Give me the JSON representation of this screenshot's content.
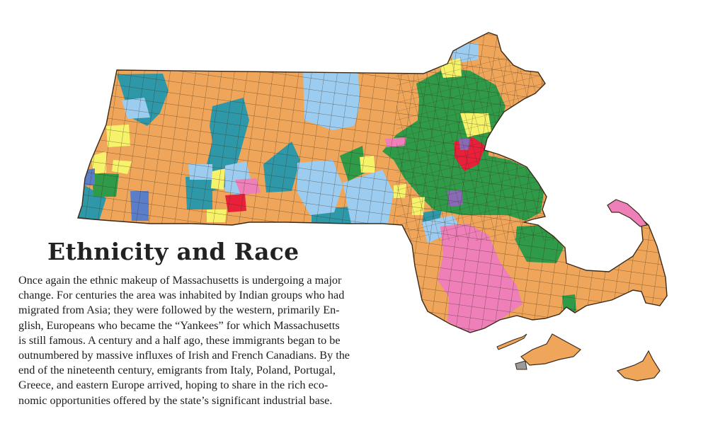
{
  "title": "Ethnicity and Race",
  "body_lines": [
    "Once again the ethnic makeup of Massachusetts is undergoing a major",
    "change. For centuries the area was inhabited by Indian groups who had",
    "migrated from Asia; they were followed by the western, primarily En-",
    "glish, Europeans who became the “Yankees” for which Massachusetts",
    "is still famous. A century and a half ago, these immigrants began to be",
    "outnumbered by massive influxes of Irish and French Canadians. By the",
    "end of the nineteenth century, emigrants from Italy, Poland, Portugal,",
    "Greece, and eastern Europe arrived, hoping to share in the rich eco-",
    "nomic opportunities offered by the state’s significant industrial base."
  ],
  "map": {
    "region": "Massachusetts",
    "colors": {
      "orange": "#f0a65a",
      "teal": "#2e98a8",
      "lightblue": "#9ccdf0",
      "green": "#2f9a48",
      "yellow": "#f6f26a",
      "pink": "#ee7fb8",
      "red": "#e8203a",
      "purple": "#8a6ab6",
      "blue": "#5a7ec8",
      "gray": "#9a9a9a",
      "border": "#3a2a1a"
    }
  }
}
